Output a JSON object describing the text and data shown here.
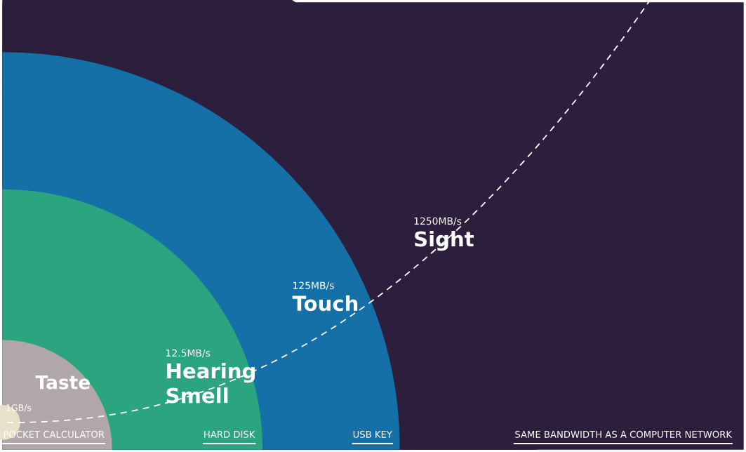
{
  "chart_data": {
    "type": "other",
    "categories": [
      "Taste",
      "Hearing\nSmell",
      "Touch",
      "Sight"
    ],
    "values": [
      1,
      12.5,
      125,
      1250
    ],
    "value_labels": [
      "1GB/s",
      "12.5MB/s",
      "125MB/s",
      "1250MB/s"
    ],
    "colors": [
      "#b2a7a8",
      "#2aa57f",
      "#1670a8",
      "#2c1f3d"
    ],
    "annotations": [
      "POCKET CALCULATOR",
      "HARD DISK",
      "USB KEY",
      "SAME BANDWIDTH AS A COMPUTER NETWORK"
    ]
  }
}
